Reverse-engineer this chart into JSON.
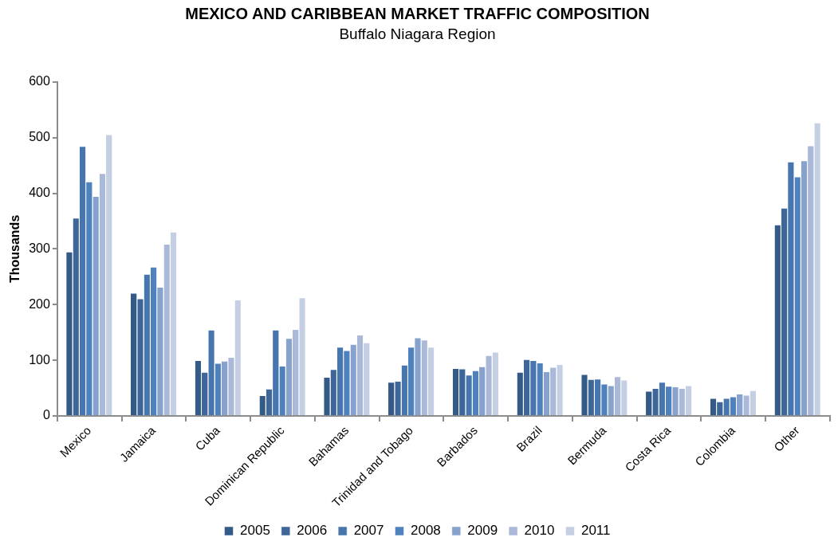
{
  "chart_data": {
    "type": "bar",
    "title": "MEXICO AND CARIBBEAN MARKET TRAFFIC COMPOSITION",
    "subtitle": "Buffalo Niagara Region",
    "ylabel": "Thousands",
    "categories": [
      "Mexico",
      "Jamaica",
      "Cuba",
      "Dominican Republic",
      "Bahamas",
      "Trinidad and Tobago",
      "Barbados",
      "Brazil",
      "Bermuda",
      "Costa Rica",
      "Colombia",
      "Other"
    ],
    "series": [
      {
        "name": "2005",
        "color": "#345a87",
        "values": [
          295,
          221,
          100,
          37,
          70,
          61,
          86,
          79,
          75,
          45,
          32,
          344
        ]
      },
      {
        "name": "2006",
        "color": "#3e6699",
        "values": [
          356,
          211,
          79,
          49,
          84,
          63,
          85,
          102,
          66,
          50,
          26,
          374
        ]
      },
      {
        "name": "2007",
        "color": "#4775ad",
        "values": [
          485,
          255,
          155,
          155,
          124,
          92,
          74,
          100,
          67,
          61,
          32,
          457
        ]
      },
      {
        "name": "2008",
        "color": "#4f81bd",
        "values": [
          421,
          268,
          95,
          90,
          118,
          124,
          82,
          96,
          58,
          54,
          35,
          430
        ]
      },
      {
        "name": "2009",
        "color": "#87a2cd",
        "values": [
          395,
          232,
          99,
          140,
          129,
          141,
          89,
          80,
          55,
          53,
          40,
          459
        ]
      },
      {
        "name": "2010",
        "color": "#abb9d9",
        "values": [
          436,
          309,
          106,
          156,
          146,
          137,
          109,
          88,
          71,
          50,
          38,
          486
        ]
      },
      {
        "name": "2011",
        "color": "#c5cfe3",
        "values": [
          506,
          331,
          209,
          213,
          132,
          124,
          115,
          93,
          65,
          55,
          46,
          527
        ]
      }
    ],
    "ylim": [
      0,
      600
    ],
    "yticks": [
      0,
      100,
      200,
      300,
      400,
      500,
      600
    ],
    "grid": false,
    "legend": "bottom"
  }
}
